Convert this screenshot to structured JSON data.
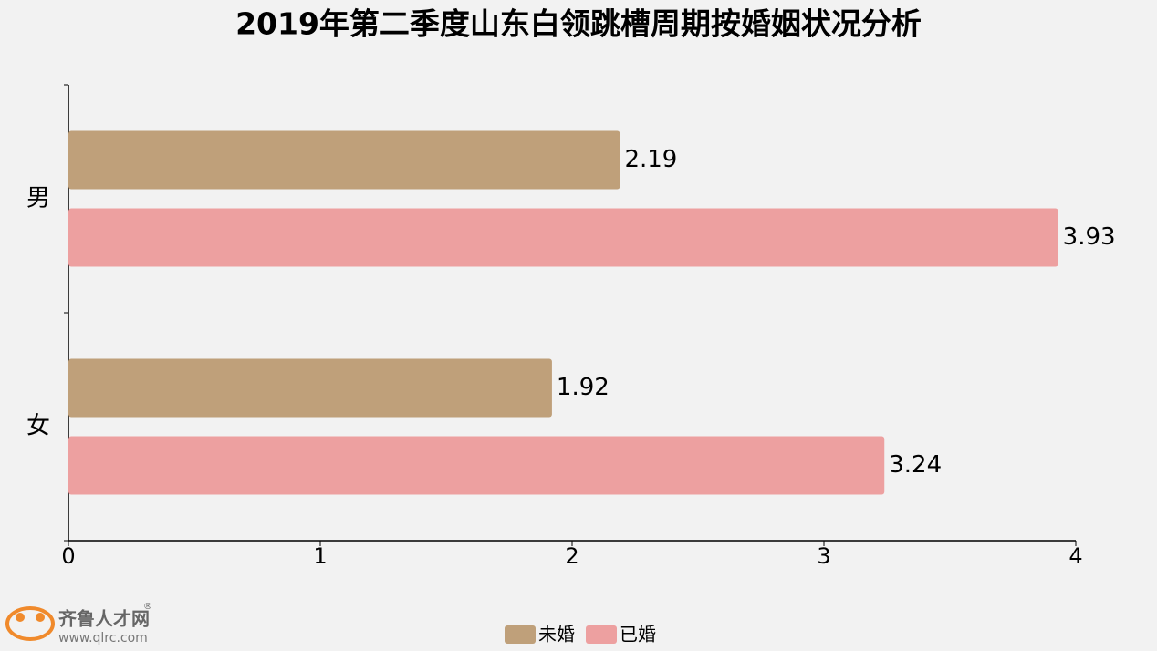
{
  "chart_data": {
    "type": "bar",
    "orientation": "horizontal",
    "title": "2019年第二季度山东白领跳槽周期按婚姻状况分析",
    "categories": [
      "男",
      "女"
    ],
    "series": [
      {
        "name": "未婚",
        "color": "#bfa07a",
        "values": [
          2.19,
          1.92
        ]
      },
      {
        "name": "已婚",
        "color": "#eda0a0",
        "values": [
          3.93,
          3.24
        ]
      }
    ],
    "xlim": [
      0,
      4
    ],
    "xticks": [
      0,
      1,
      2,
      3,
      4
    ],
    "grid": false,
    "legend": "bottom"
  },
  "logo": {
    "name": "齐鲁人才网",
    "mark": "®",
    "url": "www.qlrc.com"
  }
}
